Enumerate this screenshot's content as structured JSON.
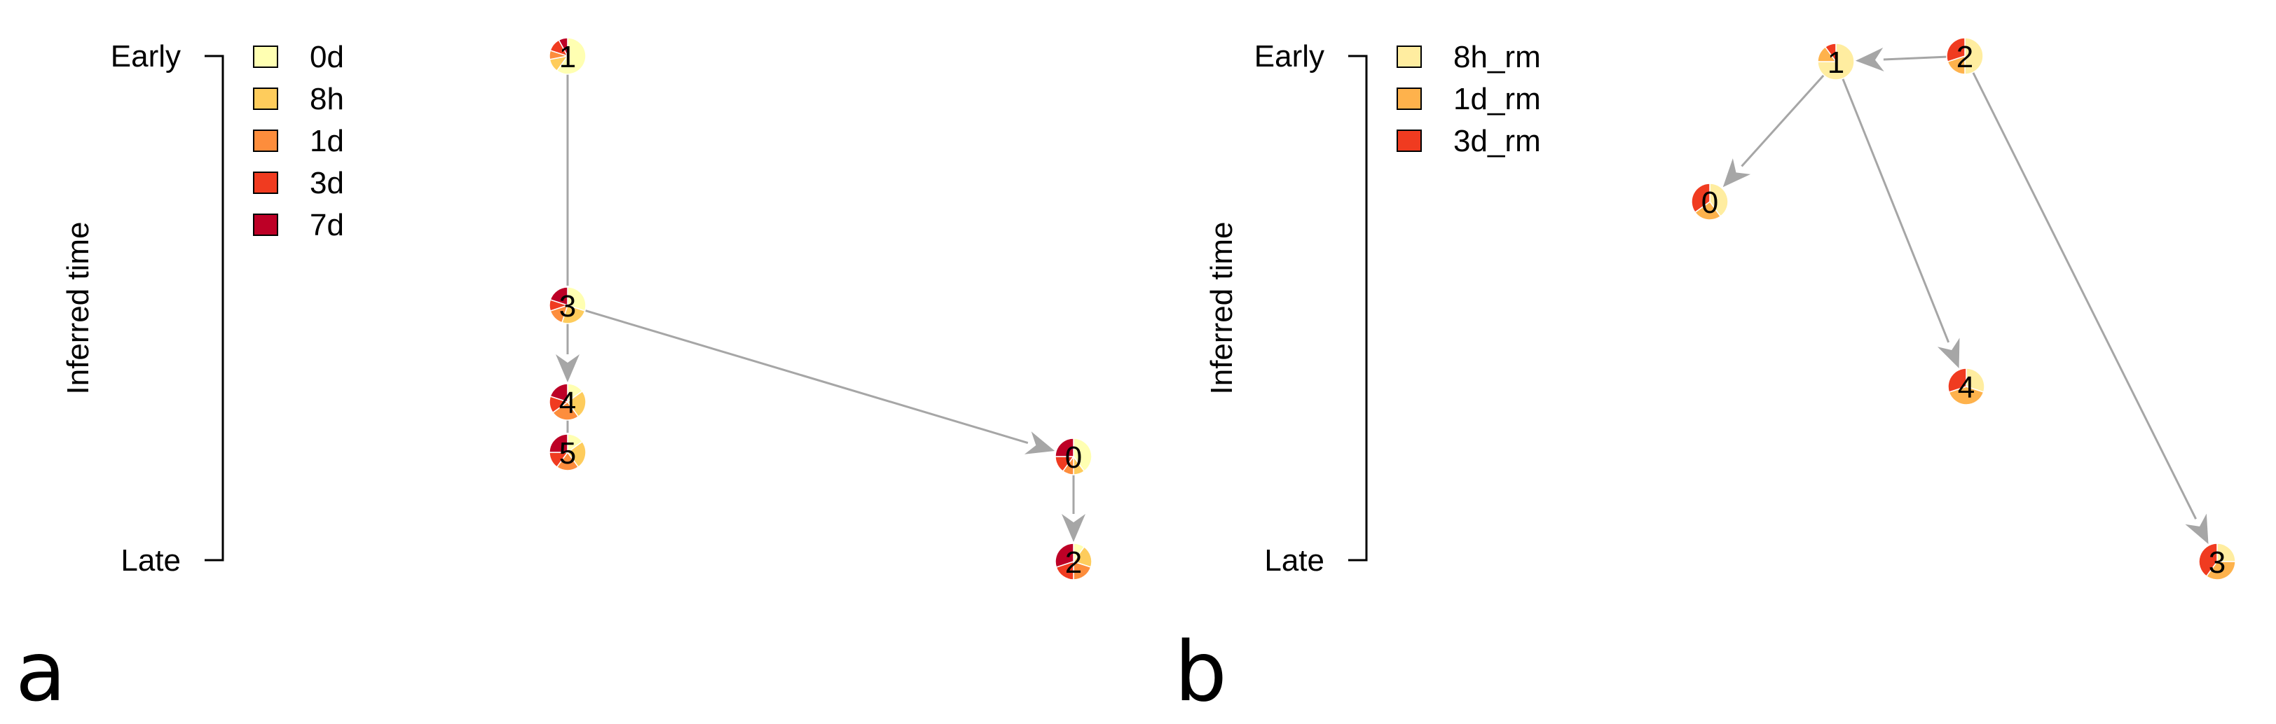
{
  "colors": {
    "edge": "#a6a6a6",
    "axis": "#000000",
    "0d": "#ffffb2",
    "8h": "#fecc5c",
    "1d": "#fd8d3c",
    "3d": "#f03b20",
    "7d": "#bd0026",
    "8h_rm": "#ffeda0",
    "1d_rm": "#feb24c",
    "3d_rm": "#f03b20"
  },
  "panels": [
    {
      "letter": "a",
      "axis": {
        "label": "Inferred time",
        "top": "Early",
        "bottom": "Late"
      },
      "legend": [
        {
          "label": "0d",
          "color": "#ffffb2"
        },
        {
          "label": "8h",
          "color": "#fecc5c"
        },
        {
          "label": "1d",
          "color": "#fd8d3c"
        },
        {
          "label": "3d",
          "color": "#f03b20"
        },
        {
          "label": "7d",
          "color": "#bd0026"
        }
      ],
      "nodes": [
        {
          "id": "1",
          "pie": [
            0.6,
            0.12,
            0.08,
            0.12,
            0.08
          ]
        },
        {
          "id": "3",
          "pie": [
            0.3,
            0.25,
            0.15,
            0.1,
            0.2
          ]
        },
        {
          "id": "4",
          "pie": [
            0.15,
            0.25,
            0.25,
            0.15,
            0.2
          ]
        },
        {
          "id": "5",
          "pie": [
            0.15,
            0.25,
            0.2,
            0.15,
            0.25
          ]
        },
        {
          "id": "0",
          "pie": [
            0.4,
            0.1,
            0.1,
            0.15,
            0.25
          ]
        },
        {
          "id": "2",
          "pie": [
            0.1,
            0.2,
            0.2,
            0.2,
            0.3
          ]
        }
      ],
      "edges": [
        {
          "from": "1",
          "to": "3",
          "arrow": false
        },
        {
          "from": "3",
          "to": "4",
          "arrow": true
        },
        {
          "from": "4",
          "to": "5",
          "arrow": false
        },
        {
          "from": "3",
          "to": "0",
          "arrow": true
        },
        {
          "from": "0",
          "to": "2",
          "arrow": true
        }
      ]
    },
    {
      "letter": "b",
      "axis": {
        "label": "Inferred time",
        "top": "Early",
        "bottom": "Late"
      },
      "legend": [
        {
          "label": "8h_rm",
          "color": "#ffeda0"
        },
        {
          "label": "1d_rm",
          "color": "#feb24c"
        },
        {
          "label": "3d_rm",
          "color": "#f03b20"
        }
      ],
      "nodes": [
        {
          "id": "1",
          "pie": [
            0.75,
            0.15,
            0.1
          ]
        },
        {
          "id": "2",
          "pie": [
            0.5,
            0.2,
            0.3
          ]
        },
        {
          "id": "0",
          "pie": [
            0.4,
            0.25,
            0.35
          ]
        },
        {
          "id": "4",
          "pie": [
            0.3,
            0.4,
            0.3
          ]
        },
        {
          "id": "3",
          "pie": [
            0.25,
            0.35,
            0.4
          ]
        }
      ],
      "edges": [
        {
          "from": "2",
          "to": "1",
          "arrow": true
        },
        {
          "from": "1",
          "to": "0",
          "arrow": true
        },
        {
          "from": "1",
          "to": "4",
          "arrow": true
        },
        {
          "from": "2",
          "to": "3",
          "arrow": true
        }
      ]
    }
  ]
}
